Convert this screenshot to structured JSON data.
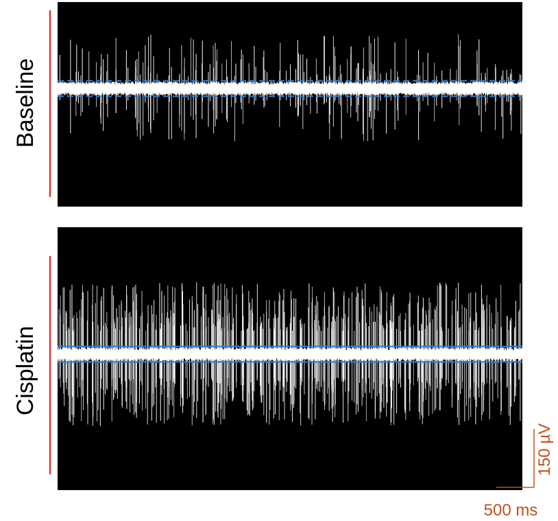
{
  "chart_data": {
    "type": "line",
    "description_free": true,
    "panels": [
      {
        "label": "Baseline",
        "trace_color": "#ffffff",
        "background_color": "#000000",
        "threshold_color": "#2f7fd6",
        "threshold_style": "dashed",
        "noise_band_uV": 18,
        "spike_amplitude_range_uV": [
          30,
          140
        ],
        "spikes_per_second": 26,
        "thresholds_uV": [
          20,
          -20
        ]
      },
      {
        "label": "Cisplatin",
        "trace_color": "#ffffff",
        "background_color": "#000000",
        "threshold_color": "#2f7fd6",
        "threshold_style": "solid",
        "noise_band_uV": 18,
        "spike_amplitude_range_uV": [
          60,
          185
        ],
        "spikes_per_second": 75,
        "thresholds_uV": [
          20,
          -20
        ]
      }
    ],
    "scale_bar": {
      "time_label": "500 ms",
      "time_ms": 500,
      "voltage_label": "150 µV",
      "voltage_uV": 150,
      "color": "#c0501e"
    },
    "label_line_color": "#d42020",
    "duration_ms": 3600,
    "grid": false,
    "legend": "none"
  }
}
